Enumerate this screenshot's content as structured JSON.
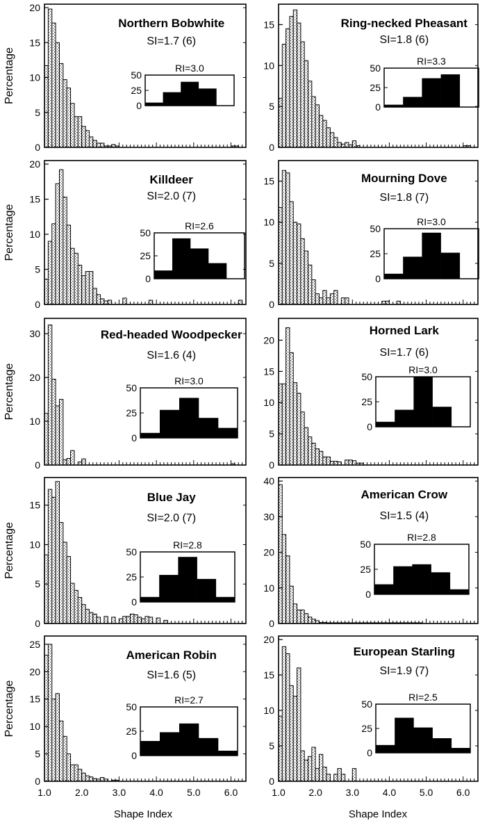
{
  "figure": {
    "ylabel": "Percentage",
    "xlabel": "Shape Index"
  },
  "chart_data": [
    {
      "type": "bar",
      "title": "Northern Bobwhite",
      "subtitle": "SI=1.7 (6)",
      "ylabel": "Percentage",
      "xlabel": "",
      "xlim": [
        1.0,
        6.4
      ],
      "ylim": [
        0,
        20.5
      ],
      "yticks": [
        0,
        5,
        10,
        15,
        20
      ],
      "x": [
        1.1,
        1.2,
        1.3,
        1.4,
        1.5,
        1.6,
        1.7,
        1.8,
        1.9,
        2.0,
        2.1,
        2.2,
        2.3,
        2.4,
        2.5,
        2.6,
        2.7,
        2.8,
        2.9,
        3.0,
        3.1,
        3.2,
        3.3,
        3.4,
        3.5,
        3.6,
        3.7,
        3.8,
        3.9,
        4.0,
        4.1,
        4.2,
        4.3,
        4.4,
        4.5,
        4.6,
        4.7,
        4.8,
        4.9,
        5.0,
        5.1,
        5.2,
        5.3,
        5.4,
        5.5,
        5.6,
        5.7,
        5.8,
        5.9,
        6.0,
        6.1,
        6.2,
        6.3,
        6.4
      ],
      "values": [
        11.7,
        19.8,
        17.8,
        15.0,
        12.0,
        9.7,
        8.5,
        6.3,
        4.4,
        4.4,
        3.0,
        2.4,
        1.5,
        1.0,
        0.6,
        0.6,
        0.2,
        0.2,
        0.4,
        0.2,
        0,
        0,
        0,
        0,
        0,
        0,
        0,
        0,
        0,
        0,
        0,
        0,
        0,
        0,
        0,
        0,
        0,
        0,
        0,
        0,
        0,
        0,
        0,
        0,
        0,
        0,
        0,
        0,
        0,
        0,
        0.2,
        0.2,
        0,
        0
      ],
      "inset": {
        "label": "RI=3.0",
        "values": [
          5,
          22,
          39,
          28,
          0
        ],
        "yticks": [
          0,
          25,
          50
        ]
      }
    },
    {
      "type": "bar",
      "title": "Ring-necked Pheasant",
      "subtitle": "SI=1.8 (6)",
      "ylabel": "",
      "xlabel": "",
      "xlim": [
        1.0,
        6.4
      ],
      "ylim": [
        0,
        17.5
      ],
      "yticks": [
        0,
        5,
        10,
        15
      ],
      "x": [
        1.1,
        1.2,
        1.3,
        1.4,
        1.5,
        1.6,
        1.7,
        1.8,
        1.9,
        2.0,
        2.1,
        2.2,
        2.3,
        2.4,
        2.5,
        2.6,
        2.7,
        2.8,
        2.9,
        3.0,
        3.1,
        3.2,
        3.3,
        3.4,
        3.5,
        3.6,
        3.7,
        3.8,
        3.9,
        4.0,
        4.1,
        4.2,
        4.3,
        4.4,
        4.5,
        4.6,
        4.7,
        4.8,
        4.9,
        5.0,
        5.1,
        5.2,
        5.3,
        5.4,
        5.5,
        5.6,
        5.7,
        5.8,
        5.9,
        6.0,
        6.1,
        6.2,
        6.3,
        6.4
      ],
      "values": [
        6.0,
        12.6,
        14.5,
        16.0,
        16.8,
        15.2,
        12.9,
        10.6,
        8.1,
        6.2,
        5.2,
        3.9,
        3.3,
        2.4,
        1.8,
        1.2,
        0.6,
        0.4,
        0.6,
        0.3,
        0.8,
        0.2,
        0,
        0,
        0,
        0,
        0,
        0,
        0,
        0,
        0,
        0,
        0,
        0,
        0,
        0,
        0,
        0,
        0,
        0,
        0,
        0,
        0,
        0,
        0,
        0,
        0,
        0,
        0,
        0,
        0.2,
        0.2,
        0,
        0
      ],
      "inset": {
        "label": "RI=3.3",
        "values": [
          3,
          13,
          37,
          42,
          0
        ],
        "yticks": [
          0,
          25,
          50
        ]
      }
    },
    {
      "type": "bar",
      "title": "Killdeer",
      "subtitle": "SI=2.0 (7)",
      "ylabel": "Percentage",
      "xlabel": "",
      "xlim": [
        1.0,
        6.4
      ],
      "ylim": [
        0,
        20.5
      ],
      "yticks": [
        0,
        5,
        10,
        15,
        20
      ],
      "x": [
        1.1,
        1.2,
        1.3,
        1.4,
        1.5,
        1.6,
        1.7,
        1.8,
        1.9,
        2.0,
        2.1,
        2.2,
        2.3,
        2.4,
        2.5,
        2.6,
        2.7,
        2.8,
        2.9,
        3.0,
        3.1,
        3.2,
        3.3,
        3.4,
        3.5,
        3.6,
        3.7,
        3.8,
        3.9,
        4.0,
        4.1,
        4.2,
        4.3,
        4.4,
        4.5,
        4.6,
        4.7,
        4.8,
        4.9,
        5.0,
        5.1,
        5.2,
        5.3,
        5.4,
        5.5,
        5.6,
        5.7,
        5.8,
        5.9,
        6.0,
        6.1,
        6.2,
        6.3,
        6.4
      ],
      "values": [
        3.6,
        9.0,
        11.5,
        17.2,
        19.2,
        15.3,
        11.3,
        8.0,
        7.3,
        5.6,
        4.1,
        4.7,
        4.7,
        2.3,
        1.4,
        0.8,
        0.5,
        0.6,
        0,
        0,
        0,
        0.9,
        0,
        0,
        0,
        0,
        0,
        0,
        0.6,
        0,
        0,
        0,
        0,
        0,
        0,
        0,
        0,
        0,
        0,
        0,
        0,
        0,
        0,
        0,
        0,
        0,
        0,
        0,
        0,
        0,
        0,
        0,
        0.6,
        0
      ],
      "inset": {
        "label": "RI=2.6",
        "values": [
          9,
          44,
          33,
          17,
          0
        ],
        "yticks": [
          0,
          25,
          50
        ]
      }
    },
    {
      "type": "bar",
      "title": "Mourning Dove",
      "subtitle": "SI=1.8 (7)",
      "ylabel": "",
      "xlabel": "",
      "xlim": [
        1.0,
        6.4
      ],
      "ylim": [
        0,
        17.5
      ],
      "yticks": [
        0,
        5,
        10,
        15
      ],
      "x": [
        1.1,
        1.2,
        1.3,
        1.4,
        1.5,
        1.6,
        1.7,
        1.8,
        1.9,
        2.0,
        2.1,
        2.2,
        2.3,
        2.4,
        2.5,
        2.6,
        2.7,
        2.8,
        2.9,
        3.0,
        3.1,
        3.2,
        3.3,
        3.4,
        3.5,
        3.6,
        3.7,
        3.8,
        3.9,
        4.0,
        4.1,
        4.2,
        4.3,
        4.4,
        4.5,
        4.6,
        4.7,
        4.8,
        4.9,
        5.0,
        5.1,
        5.2,
        5.3,
        5.4,
        5.5,
        5.6,
        5.7,
        5.8,
        5.9,
        6.0,
        6.1,
        6.2,
        6.3,
        6.4
      ],
      "values": [
        11.8,
        16.3,
        16.0,
        12.5,
        10.0,
        9.8,
        8.0,
        6.5,
        4.8,
        3.0,
        1.3,
        0.8,
        1.7,
        0.8,
        1.3,
        1.7,
        0,
        0.8,
        0.8,
        0,
        0,
        0,
        0,
        0,
        0,
        0,
        0,
        0,
        0.4,
        0.4,
        0,
        0,
        0.4,
        0,
        0,
        0,
        0,
        0,
        0,
        0,
        0,
        0,
        0,
        0,
        0,
        0,
        0,
        0,
        0,
        0,
        0,
        0,
        0,
        0
      ],
      "inset": {
        "label": "RI=3.0",
        "values": [
          5,
          22,
          46,
          26,
          0
        ],
        "yticks": [
          0,
          25,
          50
        ]
      }
    },
    {
      "type": "bar",
      "title": "Red-headed Woodpecker",
      "subtitle": "SI=1.6 (4)",
      "ylabel": "Percentage",
      "xlabel": "",
      "xlim": [
        1.0,
        6.4
      ],
      "ylim": [
        0,
        33.5
      ],
      "yticks": [
        0,
        10,
        20,
        30
      ],
      "x": [
        1.1,
        1.2,
        1.3,
        1.4,
        1.5,
        1.6,
        1.7,
        1.8,
        1.9,
        2.0,
        2.1,
        2.2,
        2.3,
        2.4,
        2.5,
        2.6,
        2.7,
        2.8,
        2.9,
        3.0,
        3.1,
        3.2,
        3.3,
        3.4,
        3.5,
        3.6,
        3.7,
        3.8,
        3.9,
        4.0,
        4.1,
        4.2,
        4.3,
        4.4,
        4.5,
        4.6,
        4.7,
        4.8,
        4.9,
        5.0,
        5.1,
        5.2,
        5.3,
        5.4,
        5.5,
        5.6,
        5.7,
        5.8,
        5.9,
        6.0,
        6.1,
        6.2,
        6.3,
        6.4
      ],
      "values": [
        11.8,
        32.0,
        19.6,
        13.5,
        15.0,
        1.2,
        1.5,
        3.3,
        0,
        0.7,
        1.4,
        0,
        0,
        0,
        0,
        0,
        0,
        0,
        0,
        0,
        0,
        0,
        0,
        0,
        0,
        0,
        0,
        0,
        0,
        0,
        0,
        0,
        0,
        0,
        0,
        0,
        0,
        0,
        0,
        0,
        0,
        0,
        0,
        0,
        0,
        0,
        0,
        0,
        0,
        0,
        0.3,
        0,
        0,
        0
      ],
      "inset": {
        "label": "RI=3.0",
        "values": [
          5,
          28,
          40,
          20,
          10
        ],
        "yticks": [
          0,
          25,
          50
        ]
      }
    },
    {
      "type": "bar",
      "title": "Horned Lark",
      "subtitle": "SI=1.7 (6)",
      "ylabel": "",
      "xlabel": "",
      "xlim": [
        1.0,
        6.4
      ],
      "ylim": [
        0,
        23.5
      ],
      "yticks": [
        0,
        5,
        10,
        15,
        20
      ],
      "x": [
        1.1,
        1.2,
        1.3,
        1.4,
        1.5,
        1.6,
        1.7,
        1.8,
        1.9,
        2.0,
        2.1,
        2.2,
        2.3,
        2.4,
        2.5,
        2.6,
        2.7,
        2.8,
        2.9,
        3.0,
        3.1,
        3.2,
        3.3,
        3.4,
        3.5,
        3.6,
        3.7,
        3.8,
        3.9,
        4.0,
        4.1,
        4.2,
        4.3,
        4.4,
        4.5,
        4.6,
        4.7,
        4.8,
        4.9,
        5.0,
        5.1,
        5.2,
        5.3,
        5.4,
        5.5,
        5.6,
        5.7,
        5.8,
        5.9,
        6.0,
        6.1,
        6.2,
        6.3,
        6.4
      ],
      "values": [
        13.0,
        13.0,
        22.0,
        18.0,
        13.2,
        11.5,
        8.5,
        6.0,
        4.5,
        3.5,
        2.6,
        2.2,
        1.3,
        1.3,
        0.6,
        0.6,
        0.5,
        0,
        0.8,
        0.8,
        0.7,
        0.3,
        0.3,
        0,
        0,
        0,
        0,
        0,
        0,
        0,
        0,
        0,
        0,
        0,
        0,
        0,
        0,
        0,
        0,
        0,
        0,
        0,
        0,
        0,
        0,
        0,
        0,
        0,
        0,
        0,
        0,
        0,
        0,
        0
      ],
      "inset": {
        "label": "RI=3.0",
        "values": [
          5,
          17,
          50,
          20,
          0
        ],
        "yticks": [
          0,
          25,
          50
        ]
      }
    },
    {
      "type": "bar",
      "title": "Blue Jay",
      "subtitle": "SI=2.0 (7)",
      "ylabel": "Percentage",
      "xlabel": "",
      "xlim": [
        1.0,
        6.4
      ],
      "ylim": [
        0,
        18.5
      ],
      "yticks": [
        0,
        5,
        10,
        15
      ],
      "x": [
        1.1,
        1.2,
        1.3,
        1.4,
        1.5,
        1.6,
        1.7,
        1.8,
        1.9,
        2.0,
        2.1,
        2.2,
        2.3,
        2.4,
        2.5,
        2.6,
        2.7,
        2.8,
        2.9,
        3.0,
        3.1,
        3.2,
        3.3,
        3.4,
        3.5,
        3.6,
        3.7,
        3.8,
        3.9,
        4.0,
        4.1,
        4.2,
        4.3,
        4.4,
        4.5,
        4.6,
        4.7,
        4.8,
        4.9,
        5.0,
        5.1,
        5.2,
        5.3,
        5.4,
        5.5,
        5.6,
        5.7,
        5.8,
        5.9,
        6.0,
        6.1,
        6.2,
        6.3,
        6.4
      ],
      "values": [
        8.7,
        17.0,
        16.0,
        18.0,
        12.8,
        10.3,
        8.5,
        5.1,
        4.2,
        3.3,
        2.4,
        1.8,
        1.4,
        1.2,
        0.8,
        0,
        0.9,
        0,
        0.8,
        0,
        0.6,
        0.9,
        0.9,
        1.2,
        1.1,
        0.8,
        0.6,
        0.9,
        0.8,
        0,
        0.7,
        0,
        0.4,
        0,
        0,
        0,
        0,
        0,
        0,
        0,
        0,
        0,
        0,
        0,
        0,
        0,
        0,
        0,
        0,
        0,
        0,
        0,
        0,
        0
      ],
      "inset": {
        "label": "RI=2.8",
        "values": [
          5,
          27,
          45,
          23,
          5
        ],
        "yticks": [
          0,
          25,
          50
        ]
      }
    },
    {
      "type": "bar",
      "title": "American Crow",
      "subtitle": "SI=1.5 (4)",
      "ylabel": "",
      "xlabel": "",
      "xlim": [
        1.0,
        6.4
      ],
      "ylim": [
        0,
        41
      ],
      "yticks": [
        0,
        10,
        20,
        30,
        40
      ],
      "x": [
        1.1,
        1.2,
        1.3,
        1.4,
        1.5,
        1.6,
        1.7,
        1.8,
        1.9,
        2.0,
        2.1,
        2.2,
        2.3,
        2.4,
        2.5,
        2.6,
        2.7,
        2.8,
        2.9,
        3.0,
        3.1,
        3.2,
        3.3,
        3.4,
        3.5,
        3.6,
        3.7,
        3.8,
        3.9,
        4.0,
        4.1,
        4.2,
        4.3,
        4.4,
        4.5,
        4.6,
        4.7,
        4.8,
        4.9,
        5.0,
        5.1,
        5.2,
        5.3,
        5.4,
        5.5,
        5.6,
        5.7,
        5.8,
        5.9,
        6.0,
        6.1,
        6.2,
        6.3,
        6.4
      ],
      "values": [
        39.0,
        25.0,
        19.0,
        10.5,
        5.5,
        3.8,
        3.8,
        2.8,
        1.8,
        1.2,
        0.8,
        0.3,
        0.3,
        0.2,
        0.2,
        0.2,
        0.2,
        0.2,
        0.2,
        0.2,
        0.2,
        0.2,
        0.2,
        0.2,
        0.2,
        0.2,
        0.2,
        0.2,
        0.2,
        0.2,
        0.2,
        0.2,
        0.2,
        0.2,
        0.2,
        0.2,
        0.2,
        0.2,
        0.2,
        0,
        0,
        0,
        0,
        0,
        0,
        0,
        0,
        0,
        0,
        0,
        0,
        0,
        0,
        0
      ],
      "inset": {
        "label": "RI=2.8",
        "values": [
          10,
          28,
          30,
          22,
          5
        ],
        "yticks": [
          0,
          25,
          50
        ]
      }
    },
    {
      "type": "bar",
      "title": "American Robin",
      "subtitle": "SI=1.6 (5)",
      "ylabel": "Percentage",
      "xlabel": "Shape Index",
      "xlim": [
        1.0,
        6.4
      ],
      "ylim": [
        0,
        26.5
      ],
      "yticks": [
        0,
        5,
        10,
        15,
        20,
        25
      ],
      "xticks": [
        1.0,
        2.0,
        3.0,
        4.0,
        5.0,
        6.0
      ],
      "x": [
        1.1,
        1.2,
        1.3,
        1.4,
        1.5,
        1.6,
        1.7,
        1.8,
        1.9,
        2.0,
        2.1,
        2.2,
        2.3,
        2.4,
        2.5,
        2.6,
        2.7,
        2.8,
        2.9,
        3.0,
        3.1,
        3.2,
        3.3,
        3.4,
        3.5,
        3.6,
        3.7,
        3.8,
        3.9,
        4.0,
        4.1,
        4.2,
        4.3,
        4.4,
        4.5,
        4.6,
        4.7,
        4.8,
        4.9,
        5.0,
        5.1,
        5.2,
        5.3,
        5.4,
        5.5,
        5.6,
        5.7,
        5.8,
        5.9,
        6.0,
        6.1,
        6.2,
        6.3,
        6.4
      ],
      "values": [
        23.0,
        25.0,
        15.0,
        16.0,
        11.0,
        8.2,
        5.0,
        3.0,
        3.0,
        2.2,
        1.5,
        1.0,
        0.8,
        0.5,
        0.4,
        0.7,
        0.4,
        0,
        0.2,
        0.2,
        0,
        0,
        0,
        0,
        0,
        0,
        0,
        0,
        0,
        0,
        0,
        0,
        0,
        0,
        0,
        0,
        0,
        0,
        0,
        0,
        0,
        0,
        0,
        0,
        0,
        0,
        0,
        0,
        0,
        0,
        0,
        0,
        0,
        0
      ],
      "inset": {
        "label": "RI=2.7",
        "values": [
          15,
          24,
          33,
          18,
          5
        ],
        "yticks": [
          0,
          25,
          50
        ]
      }
    },
    {
      "type": "bar",
      "title": "European Starling",
      "subtitle": "SI=1.9 (7)",
      "ylabel": "",
      "xlabel": "Shape Index",
      "xlim": [
        1.0,
        6.4
      ],
      "ylim": [
        0,
        20.5
      ],
      "yticks": [
        0,
        5,
        10,
        15,
        20
      ],
      "xticks": [
        1.0,
        2.0,
        3.0,
        4.0,
        5.0,
        6.0
      ],
      "x": [
        1.1,
        1.2,
        1.3,
        1.4,
        1.5,
        1.6,
        1.7,
        1.8,
        1.9,
        2.0,
        2.1,
        2.2,
        2.3,
        2.4,
        2.5,
        2.6,
        2.7,
        2.8,
        2.9,
        3.0,
        3.1,
        3.2,
        3.3,
        3.4,
        3.5,
        3.6,
        3.7,
        3.8,
        3.9,
        4.0,
        4.1,
        4.2,
        4.3,
        4.4,
        4.5,
        4.6,
        4.7,
        4.8,
        4.9,
        5.0,
        5.1,
        5.2,
        5.3,
        5.4,
        5.5,
        5.6,
        5.7,
        5.8,
        5.9,
        6.0,
        6.1,
        6.2,
        6.3,
        6.4
      ],
      "values": [
        9.2,
        19.0,
        18.0,
        13.5,
        12.0,
        16.0,
        4.3,
        3.0,
        3.5,
        4.8,
        1.8,
        3.8,
        2.0,
        1.0,
        0,
        1.0,
        1.8,
        1.0,
        0,
        0,
        1.8,
        0,
        0,
        0,
        0,
        0,
        0,
        0,
        0,
        0,
        0,
        0,
        0,
        0,
        0,
        0,
        0,
        0,
        0,
        0,
        0,
        0,
        0,
        0,
        0,
        0,
        0,
        0,
        0,
        0,
        0,
        0,
        0,
        0
      ],
      "inset": {
        "label": "RI=2.5",
        "values": [
          8,
          36,
          26,
          15,
          5
        ],
        "yticks": [
          0,
          25,
          50
        ]
      }
    }
  ]
}
